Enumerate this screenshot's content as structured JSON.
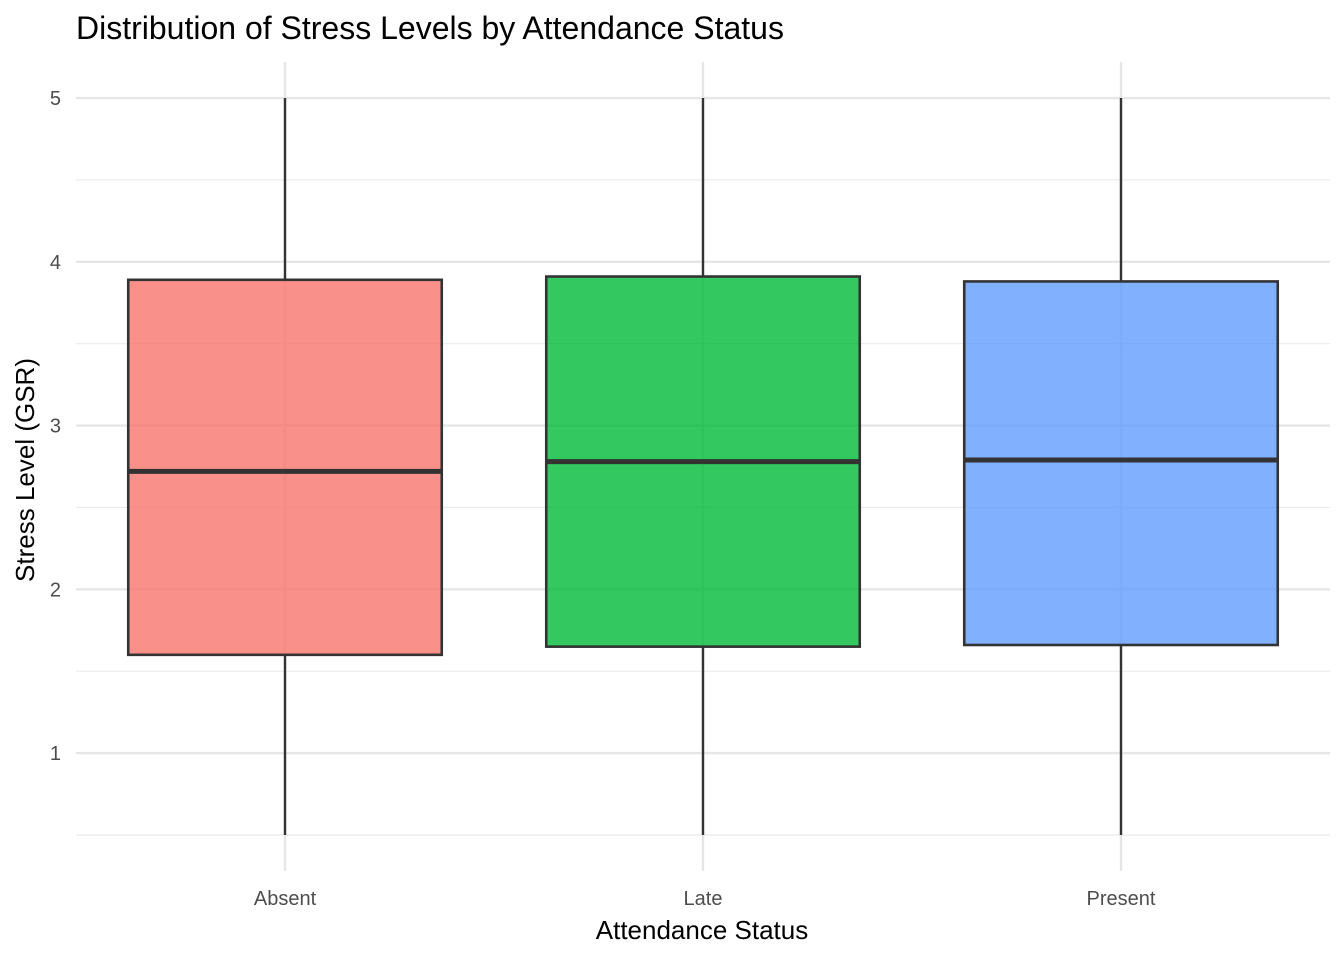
{
  "chart_data": {
    "type": "boxplot",
    "title": "Distribution of Stress Levels by Attendance Status",
    "xlabel": "Attendance Status",
    "ylabel": "Stress Level (GSR)",
    "categories": [
      "Absent",
      "Late",
      "Present"
    ],
    "boxes": [
      {
        "category": "Absent",
        "min": 0.5,
        "q1": 1.6,
        "median": 2.72,
        "q3": 3.89,
        "max": 5.0,
        "color": "#F8766D"
      },
      {
        "category": "Late",
        "min": 0.5,
        "q1": 1.65,
        "median": 2.78,
        "q3": 3.91,
        "max": 5.0,
        "color": "#00BA38"
      },
      {
        "category": "Present",
        "min": 0.5,
        "q1": 1.66,
        "median": 2.79,
        "q3": 3.88,
        "max": 5.0,
        "color": "#619CFF"
      }
    ],
    "y_ticks": [
      1,
      2,
      3,
      4,
      5
    ],
    "ylim": [
      0.28,
      5.22
    ],
    "grid": true,
    "legend": "none",
    "fill_opacity": 0.8
  }
}
